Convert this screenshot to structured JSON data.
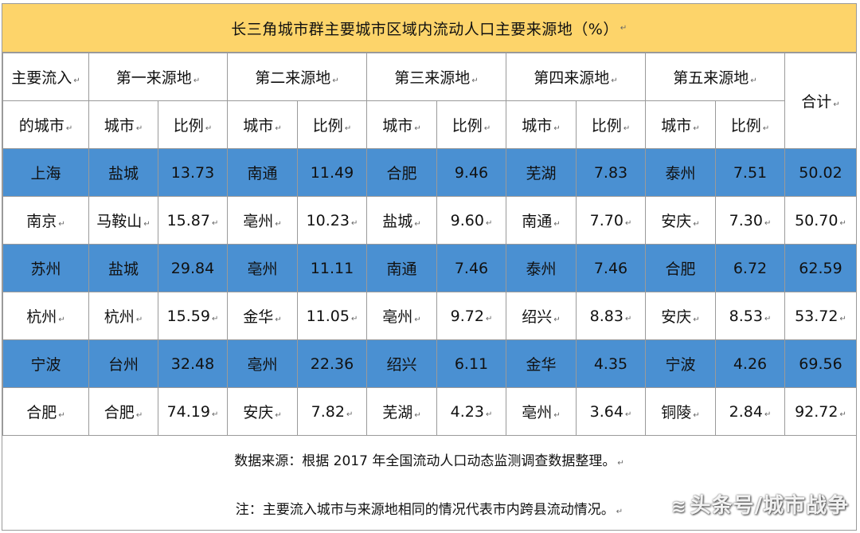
{
  "title": "长三角城市群主要城市区域内流动人口主要来源地（%）",
  "header": {
    "main_city_line1": "主要流入",
    "main_city_line2": "的城市",
    "sources": [
      "第一来源地",
      "第二来源地",
      "第三来源地",
      "第四来源地",
      "第五来源地"
    ],
    "city_label": "城市",
    "ratio_label": "比例",
    "total_label": "合计"
  },
  "rows": [
    {
      "city": "上海",
      "src": [
        [
          "盐城",
          "13.73"
        ],
        [
          "南通",
          "11.49"
        ],
        [
          "合肥",
          "9.46"
        ],
        [
          "芜湖",
          "7.83"
        ],
        [
          "泰州",
          "7.51"
        ]
      ],
      "total": "50.02"
    },
    {
      "city": "南京",
      "src": [
        [
          "马鞍山",
          "15.87"
        ],
        [
          "亳州",
          "10.23"
        ],
        [
          "盐城",
          "9.60"
        ],
        [
          "南通",
          "7.70"
        ],
        [
          "安庆",
          "7.30"
        ]
      ],
      "total": "50.70"
    },
    {
      "city": "苏州",
      "src": [
        [
          "盐城",
          "29.84"
        ],
        [
          "亳州",
          "11.11"
        ],
        [
          "南通",
          "7.46"
        ],
        [
          "泰州",
          "7.46"
        ],
        [
          "合肥",
          "6.72"
        ]
      ],
      "total": "62.59"
    },
    {
      "city": "杭州",
      "src": [
        [
          "杭州",
          "15.59"
        ],
        [
          "金华",
          "11.05"
        ],
        [
          "亳州",
          "9.72"
        ],
        [
          "绍兴",
          "8.83"
        ],
        [
          "安庆",
          "8.53"
        ]
      ],
      "total": "53.72"
    },
    {
      "city": "宁波",
      "src": [
        [
          "台州",
          "32.48"
        ],
        [
          "亳州",
          "22.36"
        ],
        [
          "绍兴",
          "6.11"
        ],
        [
          "金华",
          "4.35"
        ],
        [
          "宁波",
          "4.26"
        ]
      ],
      "total": "69.56"
    },
    {
      "city": "合肥",
      "src": [
        [
          "合肥",
          "74.19"
        ],
        [
          "安庆",
          "7.82"
        ],
        [
          "芜湖",
          "4.23"
        ],
        [
          "亳州",
          "3.64"
        ],
        [
          "铜陵",
          "2.84"
        ]
      ],
      "total": "92.72"
    }
  ],
  "row_colors": [
    "blue",
    "white",
    "blue",
    "white",
    "blue",
    "white"
  ],
  "footer": {
    "source": "数据来源：根据 2017 年全国流动人口动态监测调查数据整理。",
    "note": "注：主要流入城市与来源地相同的情况代表市内跨县流动情况。"
  },
  "watermark": "头条号/城市战争",
  "watermark_icon": "fish-logo-icon",
  "colors": {
    "title_bg": "#fdd46a",
    "blue_row": "#4a90d2",
    "border": "#9a9a9a"
  }
}
